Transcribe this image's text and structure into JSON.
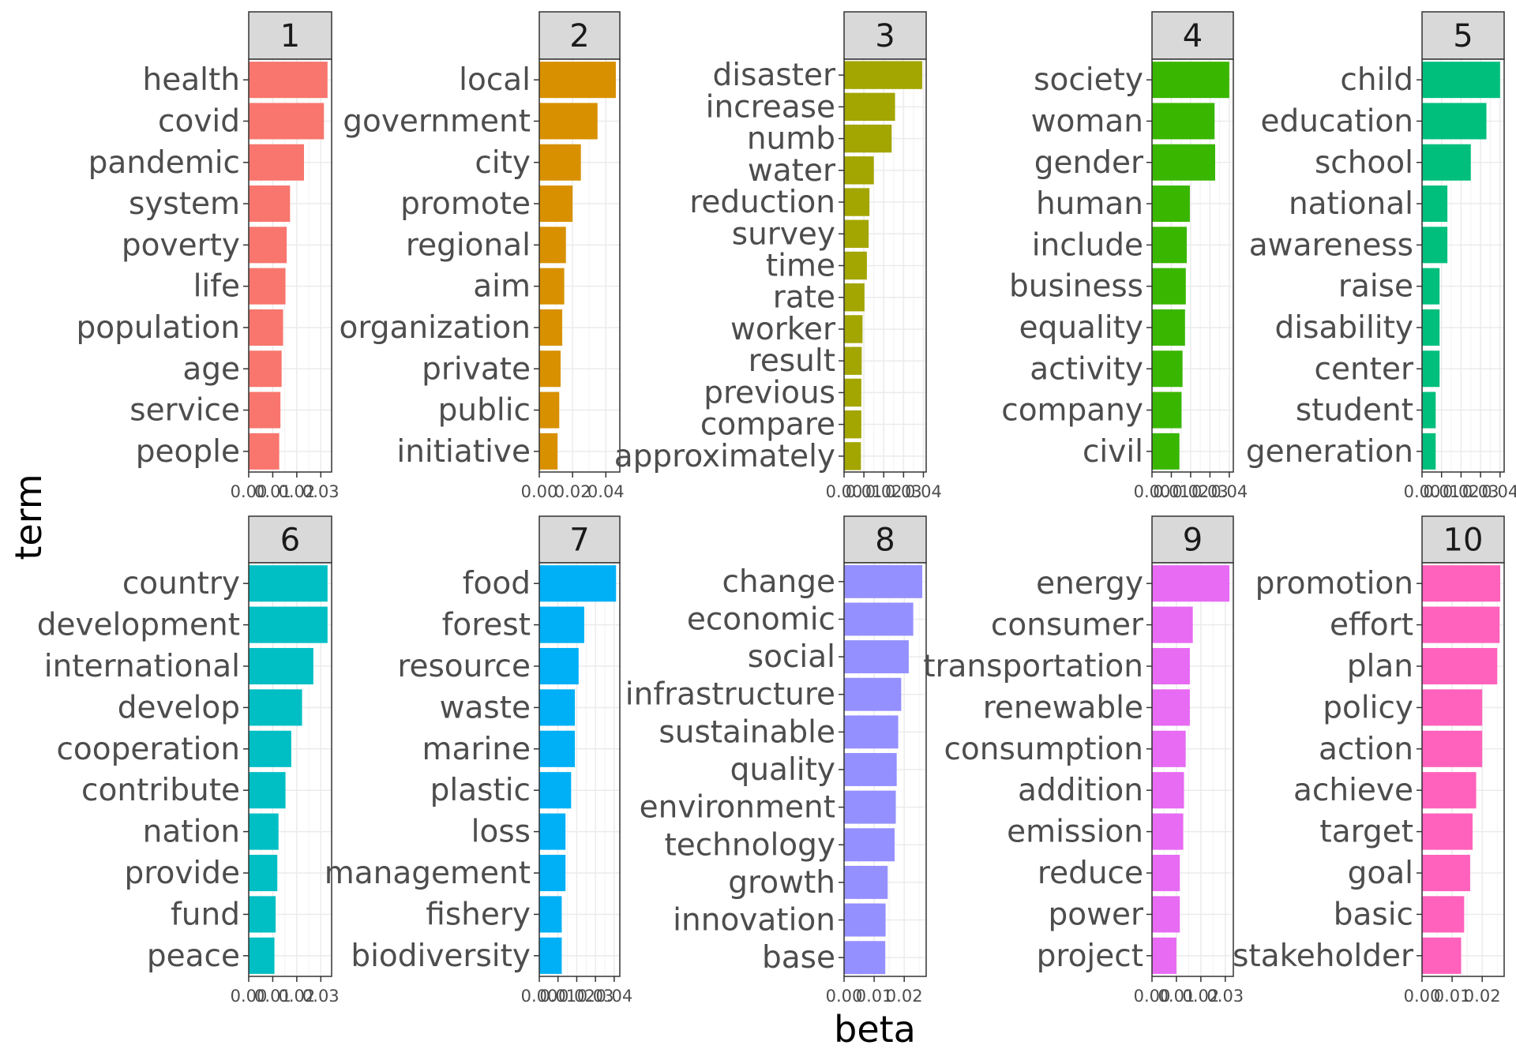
{
  "chart_data": {
    "type": "bar",
    "orientation": "horizontal",
    "layout": "faceted",
    "xlabel": "beta",
    "ylabel": "term",
    "grid": true,
    "panels": [
      {
        "label": "1",
        "color": "#F8766D",
        "xlim": [
          0,
          0.0345
        ],
        "ticks": [
          0.0,
          0.01,
          0.02,
          0.03
        ],
        "tick_labels": [
          "0.00",
          "0.01",
          "0.02",
          "0.03"
        ],
        "terms": [
          "health",
          "covid",
          "pandemic",
          "system",
          "poverty",
          "life",
          "population",
          "age",
          "service",
          "people"
        ],
        "values": [
          0.0328,
          0.0313,
          0.023,
          0.0172,
          0.0158,
          0.0153,
          0.0143,
          0.0137,
          0.0132,
          0.0127
        ]
      },
      {
        "label": "2",
        "color": "#D89000",
        "xlim": [
          0,
          0.0484
        ],
        "ticks": [
          0.0,
          0.02,
          0.04
        ],
        "tick_labels": [
          "0.00",
          "0.02",
          "0.04"
        ],
        "terms": [
          "local",
          "government",
          "city",
          "promote",
          "regional",
          "aim",
          "organization",
          "private",
          "public",
          "initiative"
        ],
        "values": [
          0.046,
          0.035,
          0.025,
          0.02,
          0.016,
          0.015,
          0.0138,
          0.0128,
          0.012,
          0.011
        ]
      },
      {
        "label": "3",
        "color": "#A3A500",
        "xlim": [
          0,
          0.0414
        ],
        "ticks": [
          0.0,
          0.01,
          0.02,
          0.03,
          0.04
        ],
        "tick_labels": [
          "0.00",
          "0.01",
          "0.02",
          "0.03",
          "0.04"
        ],
        "terms": [
          "disaster",
          "increase",
          "numb",
          "water",
          "reduction",
          "survey",
          "time",
          "rate",
          "worker",
          "result",
          "previous",
          "compare",
          "approximately"
        ],
        "values": [
          0.0394,
          0.0257,
          0.024,
          0.015,
          0.0128,
          0.0124,
          0.0115,
          0.0103,
          0.0093,
          0.0089,
          0.0087,
          0.0087,
          0.0085
        ]
      },
      {
        "label": "4",
        "color": "#39B600",
        "xlim": [
          0,
          0.0421
        ],
        "ticks": [
          0.0,
          0.01,
          0.02,
          0.03,
          0.04
        ],
        "tick_labels": [
          "0.00",
          "0.01",
          "0.02",
          "0.03",
          "0.04"
        ],
        "terms": [
          "society",
          "woman",
          "gender",
          "human",
          "include",
          "business",
          "equality",
          "activity",
          "company",
          "civil"
        ],
        "values": [
          0.04,
          0.0324,
          0.0327,
          0.0196,
          0.018,
          0.0175,
          0.0171,
          0.0158,
          0.0153,
          0.0142
        ]
      },
      {
        "label": "5",
        "color": "#00BF7D",
        "xlim": [
          0,
          0.0421
        ],
        "ticks": [
          0.0,
          0.01,
          0.02,
          0.03,
          0.04
        ],
        "tick_labels": [
          "0.00",
          "0.01",
          "0.02",
          "0.03",
          "0.04"
        ],
        "terms": [
          "child",
          "education",
          "school",
          "national",
          "awareness",
          "raise",
          "disability",
          "center",
          "student",
          "generation"
        ],
        "values": [
          0.04,
          0.033,
          0.025,
          0.013,
          0.013,
          0.009,
          0.009,
          0.009,
          0.007,
          0.007
        ]
      },
      {
        "label": "6",
        "color": "#00BFC4",
        "xlim": [
          0,
          0.0345
        ],
        "ticks": [
          0.0,
          0.01,
          0.02,
          0.03
        ],
        "tick_labels": [
          "0.00",
          "0.01",
          "0.02",
          "0.03"
        ],
        "terms": [
          "country",
          "development",
          "international",
          "develop",
          "cooperation",
          "contribute",
          "nation",
          "provide",
          "fund",
          "peace"
        ],
        "values": [
          0.0328,
          0.0328,
          0.0269,
          0.0222,
          0.0177,
          0.0153,
          0.0124,
          0.0119,
          0.0112,
          0.0107
        ]
      },
      {
        "label": "7",
        "color": "#00B0F6",
        "xlim": [
          0,
          0.043
        ],
        "ticks": [
          0.0,
          0.01,
          0.02,
          0.03,
          0.04
        ],
        "tick_labels": [
          "0.00",
          "0.01",
          "0.02",
          "0.03",
          "0.04"
        ],
        "terms": [
          "food",
          "forest",
          "resource",
          "waste",
          "marine",
          "plastic",
          "loss",
          "management",
          "fishery",
          "biodiversity"
        ],
        "values": [
          0.041,
          0.024,
          0.021,
          0.019,
          0.019,
          0.017,
          0.014,
          0.014,
          0.012,
          0.012
        ]
      },
      {
        "label": "8",
        "color": "#9590FF",
        "xlim": [
          0,
          0.0273
        ],
        "ticks": [
          0.0,
          0.01,
          0.02
        ],
        "tick_labels": [
          "0.00",
          "0.01",
          "0.02"
        ],
        "terms": [
          "change",
          "economic",
          "social",
          "infrastructure",
          "sustainable",
          "quality",
          "environment",
          "technology",
          "growth",
          "innovation",
          "base"
        ],
        "values": [
          0.026,
          0.023,
          0.0215,
          0.019,
          0.018,
          0.0175,
          0.0172,
          0.0168,
          0.0145,
          0.0138,
          0.0137
        ]
      },
      {
        "label": "9",
        "color": "#E76BF3",
        "xlim": [
          0,
          0.0333
        ],
        "ticks": [
          0.0,
          0.01,
          0.02,
          0.03
        ],
        "tick_labels": [
          "0.00",
          "0.01",
          "0.02",
          "0.03"
        ],
        "terms": [
          "energy",
          "consumer",
          "transportation",
          "renewable",
          "consumption",
          "addition",
          "emission",
          "reduce",
          "power",
          "project"
        ],
        "values": [
          0.0317,
          0.0167,
          0.0155,
          0.0155,
          0.0138,
          0.0131,
          0.0128,
          0.0114,
          0.0114,
          0.01
        ]
      },
      {
        "label": "10",
        "color": "#FF62BC",
        "xlim": [
          0,
          0.0273
        ],
        "ticks": [
          0.0,
          0.01,
          0.02
        ],
        "tick_labels": [
          "0.00",
          "0.01",
          "0.02"
        ],
        "terms": [
          "promotion",
          "effort",
          "plan",
          "policy",
          "action",
          "achieve",
          "target",
          "goal",
          "basic",
          "stakeholder"
        ],
        "values": [
          0.026,
          0.0258,
          0.025,
          0.02,
          0.02,
          0.018,
          0.0168,
          0.016,
          0.014,
          0.013
        ]
      }
    ]
  }
}
